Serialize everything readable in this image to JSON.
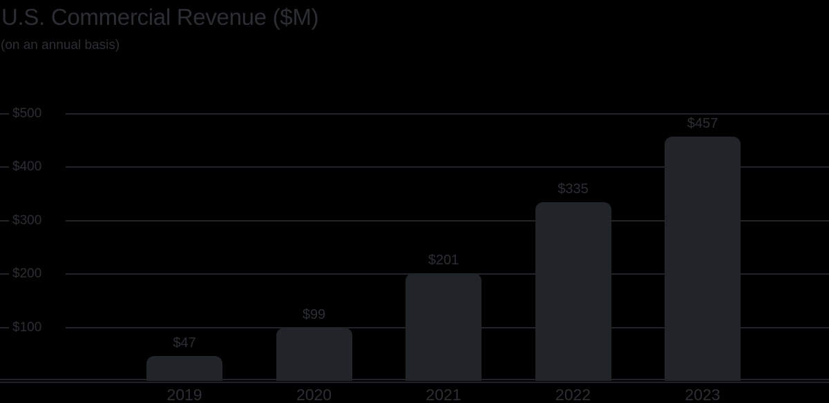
{
  "chart_data": {
    "type": "bar",
    "title": "U.S. Commercial Revenue ($M)",
    "subtitle": "(on an annual basis)",
    "categories": [
      "2019",
      "2020",
      "2021",
      "2022",
      "2023"
    ],
    "values": [
      47,
      99,
      201,
      335,
      457
    ],
    "value_labels": [
      "$47",
      "$99",
      "$201",
      "$335",
      "$457"
    ],
    "y_ticks": [
      100,
      200,
      300,
      400,
      500
    ],
    "y_tick_labels": [
      "$100",
      "$200",
      "$300",
      "$400",
      "$500"
    ],
    "ylim": [
      0,
      500
    ],
    "xlabel": "",
    "ylabel": "",
    "grid": true,
    "legend": false,
    "colors": {
      "background": "#000000",
      "bar": "#212428",
      "gridline": "#202328",
      "text": "#2b2e33"
    }
  }
}
